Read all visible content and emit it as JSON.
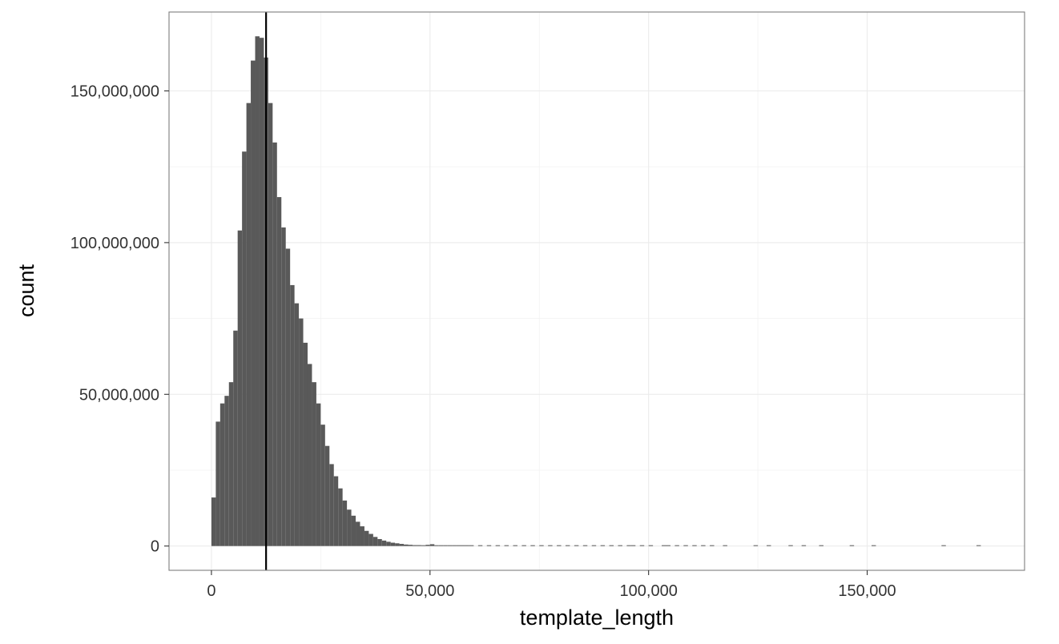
{
  "chart_data": {
    "type": "bar",
    "subtype": "histogram",
    "title": "",
    "xlabel": "template_length",
    "ylabel": "count",
    "xlim": [
      -9700,
      186000
    ],
    "ylim": [
      -8000000,
      176000000
    ],
    "x_ticks": [
      {
        "value": 0,
        "label": "0"
      },
      {
        "value": 50000,
        "label": "50,000"
      },
      {
        "value": 100000,
        "label": "100,000"
      },
      {
        "value": 150000,
        "label": "150,000"
      }
    ],
    "y_ticks": [
      {
        "value": 0,
        "label": "0"
      },
      {
        "value": 50000000,
        "label": "50,000,000"
      },
      {
        "value": 100000000,
        "label": "100,000,000"
      },
      {
        "value": 150000000,
        "label": "150,000,000"
      }
    ],
    "grid": true,
    "bin_width": 1000,
    "bar_color": "#595959",
    "vline": {
      "x": 12500,
      "color": "#000000"
    },
    "bins": [
      [
        0,
        16000000
      ],
      [
        1000,
        41000000
      ],
      [
        2000,
        47000000
      ],
      [
        3000,
        49500000
      ],
      [
        4000,
        54000000
      ],
      [
        5000,
        71000000
      ],
      [
        6000,
        104000000
      ],
      [
        7000,
        130000000
      ],
      [
        8000,
        146000000
      ],
      [
        9000,
        160000000
      ],
      [
        10000,
        168000000
      ],
      [
        11000,
        167500000
      ],
      [
        12000,
        161000000
      ],
      [
        13000,
        146000000
      ],
      [
        14000,
        133000000
      ],
      [
        15000,
        115000000
      ],
      [
        16000,
        105000000
      ],
      [
        17000,
        98000000
      ],
      [
        18000,
        86000000
      ],
      [
        19000,
        80000000
      ],
      [
        20000,
        75000000
      ],
      [
        21000,
        67000000
      ],
      [
        22000,
        60000000
      ],
      [
        23000,
        54000000
      ],
      [
        24000,
        47000000
      ],
      [
        25000,
        40000000
      ],
      [
        26000,
        33000000
      ],
      [
        27000,
        27000000
      ],
      [
        28000,
        23000000
      ],
      [
        29000,
        19000000
      ],
      [
        30000,
        15000000
      ],
      [
        31000,
        12000000
      ],
      [
        32000,
        10000000
      ],
      [
        33000,
        8000000
      ],
      [
        34000,
        6500000
      ],
      [
        35000,
        5000000
      ],
      [
        36000,
        4000000
      ],
      [
        37000,
        3000000
      ],
      [
        38000,
        2300000
      ],
      [
        39000,
        1800000
      ],
      [
        40000,
        1400000
      ],
      [
        41000,
        1100000
      ],
      [
        42000,
        900000
      ],
      [
        43000,
        700000
      ],
      [
        44000,
        500000
      ],
      [
        45000,
        400000
      ],
      [
        46000,
        300000
      ],
      [
        47000,
        300000
      ],
      [
        48000,
        200000
      ],
      [
        49000,
        400000
      ],
      [
        50000,
        600000
      ],
      [
        51000,
        200000
      ],
      [
        52000,
        150000
      ],
      [
        53000,
        100000
      ],
      [
        54000,
        150000
      ],
      [
        55000,
        100000
      ],
      [
        56000,
        100000
      ],
      [
        57000,
        100000
      ],
      [
        58000,
        80000
      ],
      [
        59000,
        80000
      ],
      [
        61000,
        250000
      ],
      [
        63000,
        200000
      ],
      [
        65000,
        120000
      ],
      [
        67000,
        100000
      ],
      [
        69000,
        120000
      ],
      [
        71000,
        100000
      ],
      [
        73000,
        80000
      ],
      [
        75000,
        80000
      ],
      [
        77000,
        200000
      ],
      [
        79000,
        100000
      ],
      [
        81000,
        80000
      ],
      [
        83000,
        80000
      ],
      [
        85000,
        80000
      ],
      [
        87000,
        70000
      ],
      [
        89000,
        70000
      ],
      [
        91000,
        80000
      ],
      [
        93000,
        60000
      ],
      [
        95000,
        70000
      ],
      [
        96000,
        250000
      ],
      [
        98000,
        100000
      ],
      [
        100000,
        60000
      ],
      [
        103000,
        50000
      ],
      [
        104000,
        200000
      ],
      [
        106000,
        150000
      ],
      [
        108000,
        60000
      ],
      [
        110000,
        50000
      ],
      [
        112000,
        50000
      ],
      [
        114000,
        50000
      ],
      [
        117000,
        120000
      ],
      [
        124000,
        50000
      ],
      [
        127000,
        50000
      ],
      [
        132000,
        40000
      ],
      [
        135000,
        40000
      ],
      [
        139000,
        40000
      ],
      [
        146000,
        40000
      ],
      [
        151000,
        60000
      ],
      [
        167000,
        40000
      ],
      [
        175000,
        40000
      ]
    ]
  }
}
